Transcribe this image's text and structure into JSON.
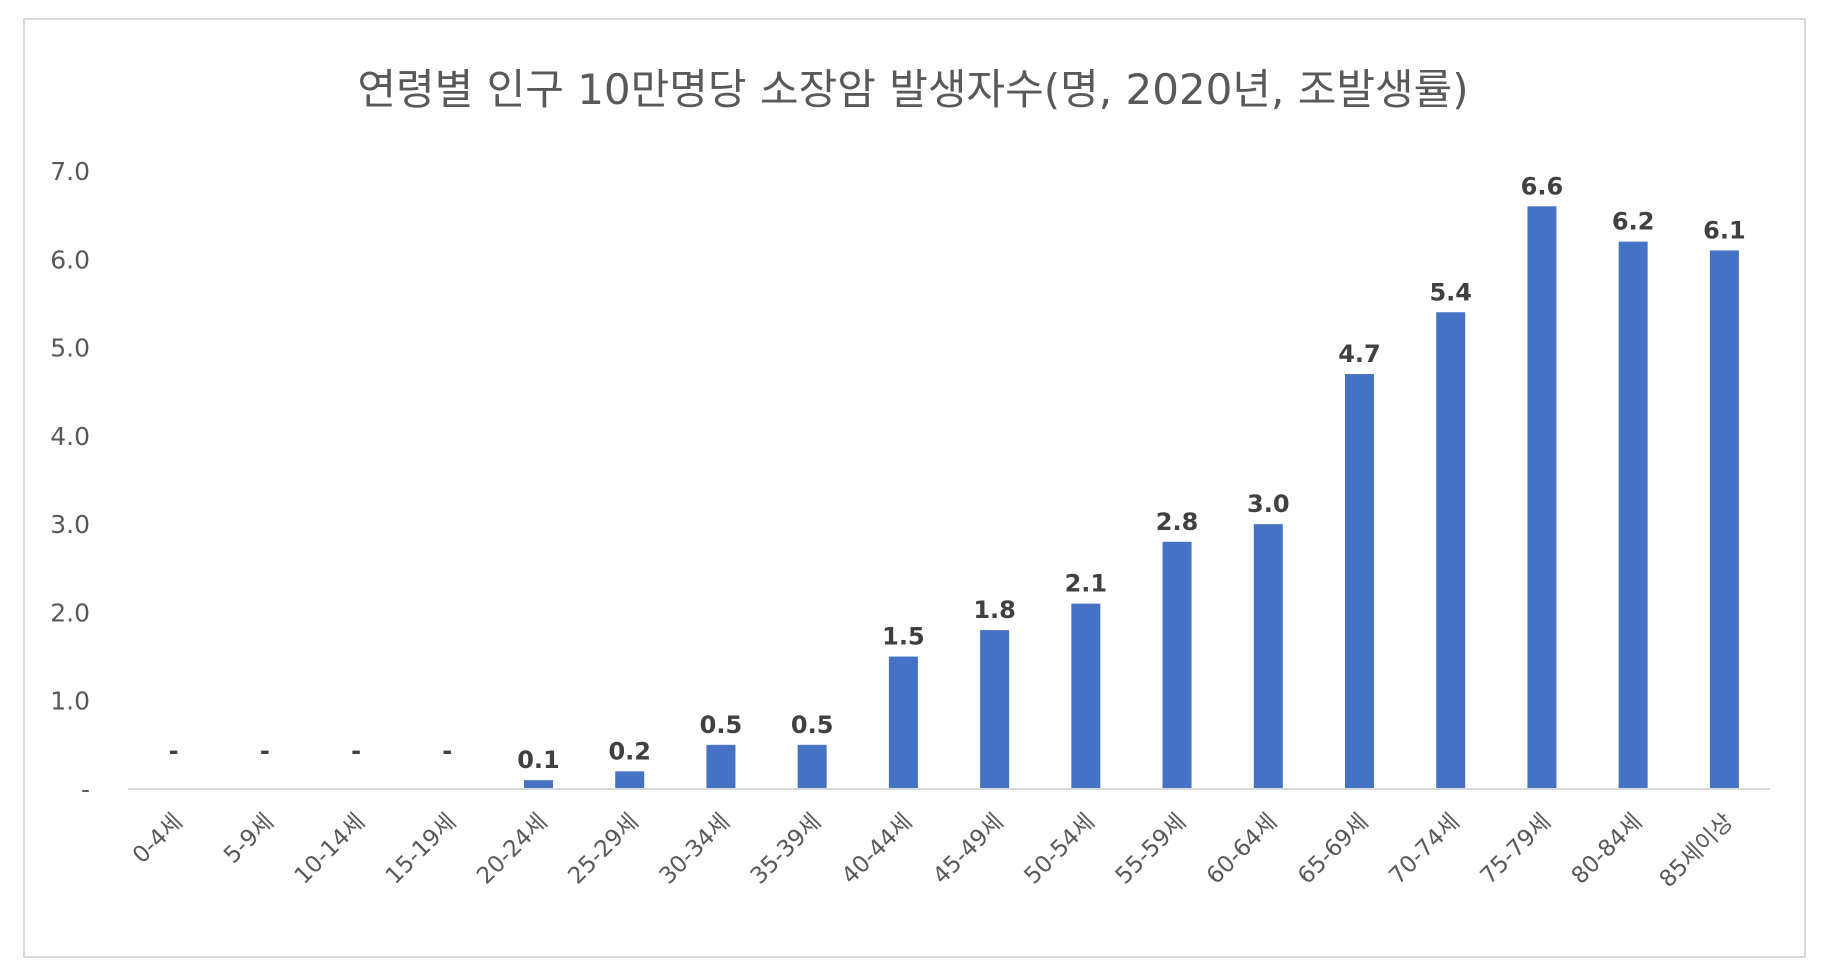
{
  "chart_data": {
    "type": "bar",
    "title": "연령별 인구 10만명당 소장암 발생자수(명, 2020년, 조발생률)",
    "xlabel": "",
    "ylabel": "",
    "ylim": [
      0,
      7
    ],
    "y_ticks": [
      "-",
      "1.0",
      "2.0",
      "3.0",
      "4.0",
      "5.0",
      "6.0",
      "7.0"
    ],
    "grid": false,
    "legend": "none",
    "bar_color": "#4472C4",
    "categories": [
      "0-4세",
      "5-9세",
      "10-14세",
      "15-19세",
      "20-24세",
      "25-29세",
      "30-34세",
      "35-39세",
      "40-44세",
      "45-49세",
      "50-54세",
      "55-59세",
      "60-64세",
      "65-69세",
      "70-74세",
      "75-79세",
      "80-84세",
      "85세이상"
    ],
    "values": [
      0,
      0,
      0,
      0,
      0.1,
      0.2,
      0.5,
      0.5,
      1.5,
      1.8,
      2.1,
      2.8,
      3.0,
      4.7,
      5.4,
      6.6,
      6.2,
      6.1
    ],
    "data_labels": [
      "-",
      "-",
      "-",
      "-",
      "0.1",
      "0.2",
      "0.5",
      "0.5",
      "1.5",
      "1.8",
      "2.1",
      "2.8",
      "3.0",
      "4.7",
      "5.4",
      "6.6",
      "6.2",
      "6.1"
    ]
  }
}
